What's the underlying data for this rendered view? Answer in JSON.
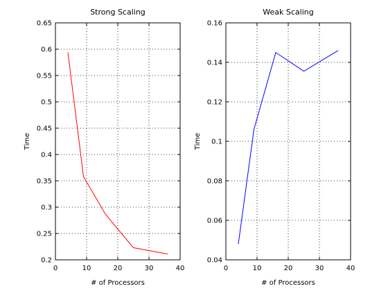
{
  "chart_data": [
    {
      "type": "line",
      "title": "Strong Scaling",
      "xlabel": "# of Processors",
      "ylabel": "Time",
      "xlim": [
        0,
        40
      ],
      "ylim": [
        0.2,
        0.65
      ],
      "xticks": [
        0,
        10,
        20,
        30,
        40
      ],
      "yticks": [
        0.2,
        0.25,
        0.3,
        0.35,
        0.4,
        0.45,
        0.5,
        0.55,
        0.6,
        0.65
      ],
      "grid": true,
      "series": [
        {
          "color": "#ff0000",
          "x": [
            4,
            9,
            16,
            25,
            36
          ],
          "y": [
            0.594,
            0.358,
            0.287,
            0.223,
            0.211
          ]
        }
      ]
    },
    {
      "type": "line",
      "title": "Weak Scaling",
      "xlabel": "# of Processors",
      "ylabel": "Time",
      "xlim": [
        0,
        40
      ],
      "ylim": [
        0.04,
        0.16
      ],
      "xticks": [
        0,
        10,
        20,
        30,
        40
      ],
      "yticks": [
        0.04,
        0.06,
        0.08,
        0.1,
        0.12,
        0.14,
        0.16
      ],
      "grid": true,
      "series": [
        {
          "color": "#0000ff",
          "x": [
            4,
            9,
            16,
            25,
            36
          ],
          "y": [
            0.048,
            0.106,
            0.145,
            0.1355,
            0.146
          ]
        }
      ]
    }
  ]
}
